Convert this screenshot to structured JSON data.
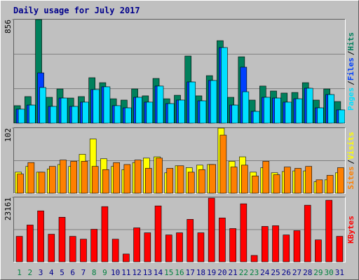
{
  "chart_data": [
    {
      "type": "bar",
      "title": "Daily usage for July 2017",
      "ylim": [
        0,
        856
      ],
      "yticks": [
        856
      ],
      "legend_separator": "/",
      "series": [
        {
          "name": "Pages",
          "color": "#00e0ff",
          "values": [
            116,
            150,
            295,
            139,
            208,
            139,
            174,
            278,
            301,
            145,
            127,
            214,
            174,
            307,
            162,
            191,
            341,
            185,
            353,
            625,
            150,
            260,
            98,
            214,
            208,
            174,
            202,
            289,
            127,
            237,
            110
          ]
        },
        {
          "name": "Files",
          "color": "#0040ff",
          "values": [
            116,
            150,
            416,
            139,
            208,
            139,
            174,
            278,
            301,
            145,
            127,
            214,
            174,
            307,
            162,
            191,
            341,
            185,
            353,
            625,
            150,
            463,
            98,
            214,
            208,
            174,
            202,
            289,
            127,
            237,
            110
          ]
        },
        {
          "name": "Hits",
          "color": "#00805c",
          "values": [
            145,
            220,
            856,
            214,
            283,
            208,
            220,
            376,
            335,
            202,
            191,
            283,
            226,
            370,
            202,
            231,
            555,
            226,
            393,
            682,
            214,
            549,
            191,
            307,
            266,
            249,
            254,
            335,
            191,
            283,
            179
          ]
        }
      ]
    },
    {
      "type": "bar",
      "ylim": [
        0,
        102
      ],
      "yticks": [
        102
      ],
      "legend_separator": "/",
      "series": [
        {
          "name": "Sites",
          "color": "#ff8000",
          "values": [
            30,
            48,
            33,
            42,
            52,
            50,
            50,
            42,
            37,
            48,
            45,
            52,
            39,
            55,
            39,
            43,
            33,
            37,
            45,
            91,
            41,
            44,
            27,
            50,
            29,
            41,
            39,
            42,
            21,
            28,
            40
          ]
        },
        {
          "name": "Visits",
          "color": "#ffff00",
          "values": [
            33,
            42,
            33,
            38,
            45,
            42,
            61,
            85,
            54,
            42,
            37,
            48,
            55,
            57,
            32,
            43,
            40,
            44,
            45,
            102,
            50,
            57,
            33,
            40,
            32,
            34,
            35,
            35,
            18,
            21,
            32
          ]
        }
      ]
    },
    {
      "type": "bar",
      "ylim": [
        0,
        23161
      ],
      "yticks": [
        23161
      ],
      "categories": [
        "1",
        "2",
        "3",
        "4",
        "5",
        "6",
        "7",
        "8",
        "9",
        "10",
        "11",
        "12",
        "13",
        "14",
        "15",
        "16",
        "17",
        "18",
        "19",
        "20",
        "21",
        "22",
        "23",
        "24",
        "25",
        "26",
        "27",
        "28",
        "29",
        "30",
        "31"
      ],
      "category_colors": [
        "#008040",
        "#008040",
        "#00008b",
        "#00008b",
        "#00008b",
        "#00008b",
        "#00008b",
        "#008040",
        "#008040",
        "#00008b",
        "#00008b",
        "#00008b",
        "#00008b",
        "#00008b",
        "#008040",
        "#008040",
        "#00008b",
        "#00008b",
        "#00008b",
        "#00008b",
        "#00008b",
        "#008040",
        "#008040",
        "#00008b",
        "#00008b",
        "#00008b",
        "#00008b",
        "#00008b",
        "#008040",
        "#008040",
        "#00008b"
      ],
      "series": [
        {
          "name": "KBytes",
          "color": "#ff0000",
          "values": [
            9162,
            13234,
            18324,
            9926,
            16034,
            9162,
            8144,
            11707,
            19851,
            8144,
            2800,
            12216,
            10435,
            20106,
            9671,
            10435,
            15270,
            10435,
            22906,
            15779,
            11962,
            20869,
            2291,
            12725,
            12980,
            9671,
            11198,
            20360,
            7890,
            22142,
            9162
          ]
        }
      ]
    }
  ]
}
